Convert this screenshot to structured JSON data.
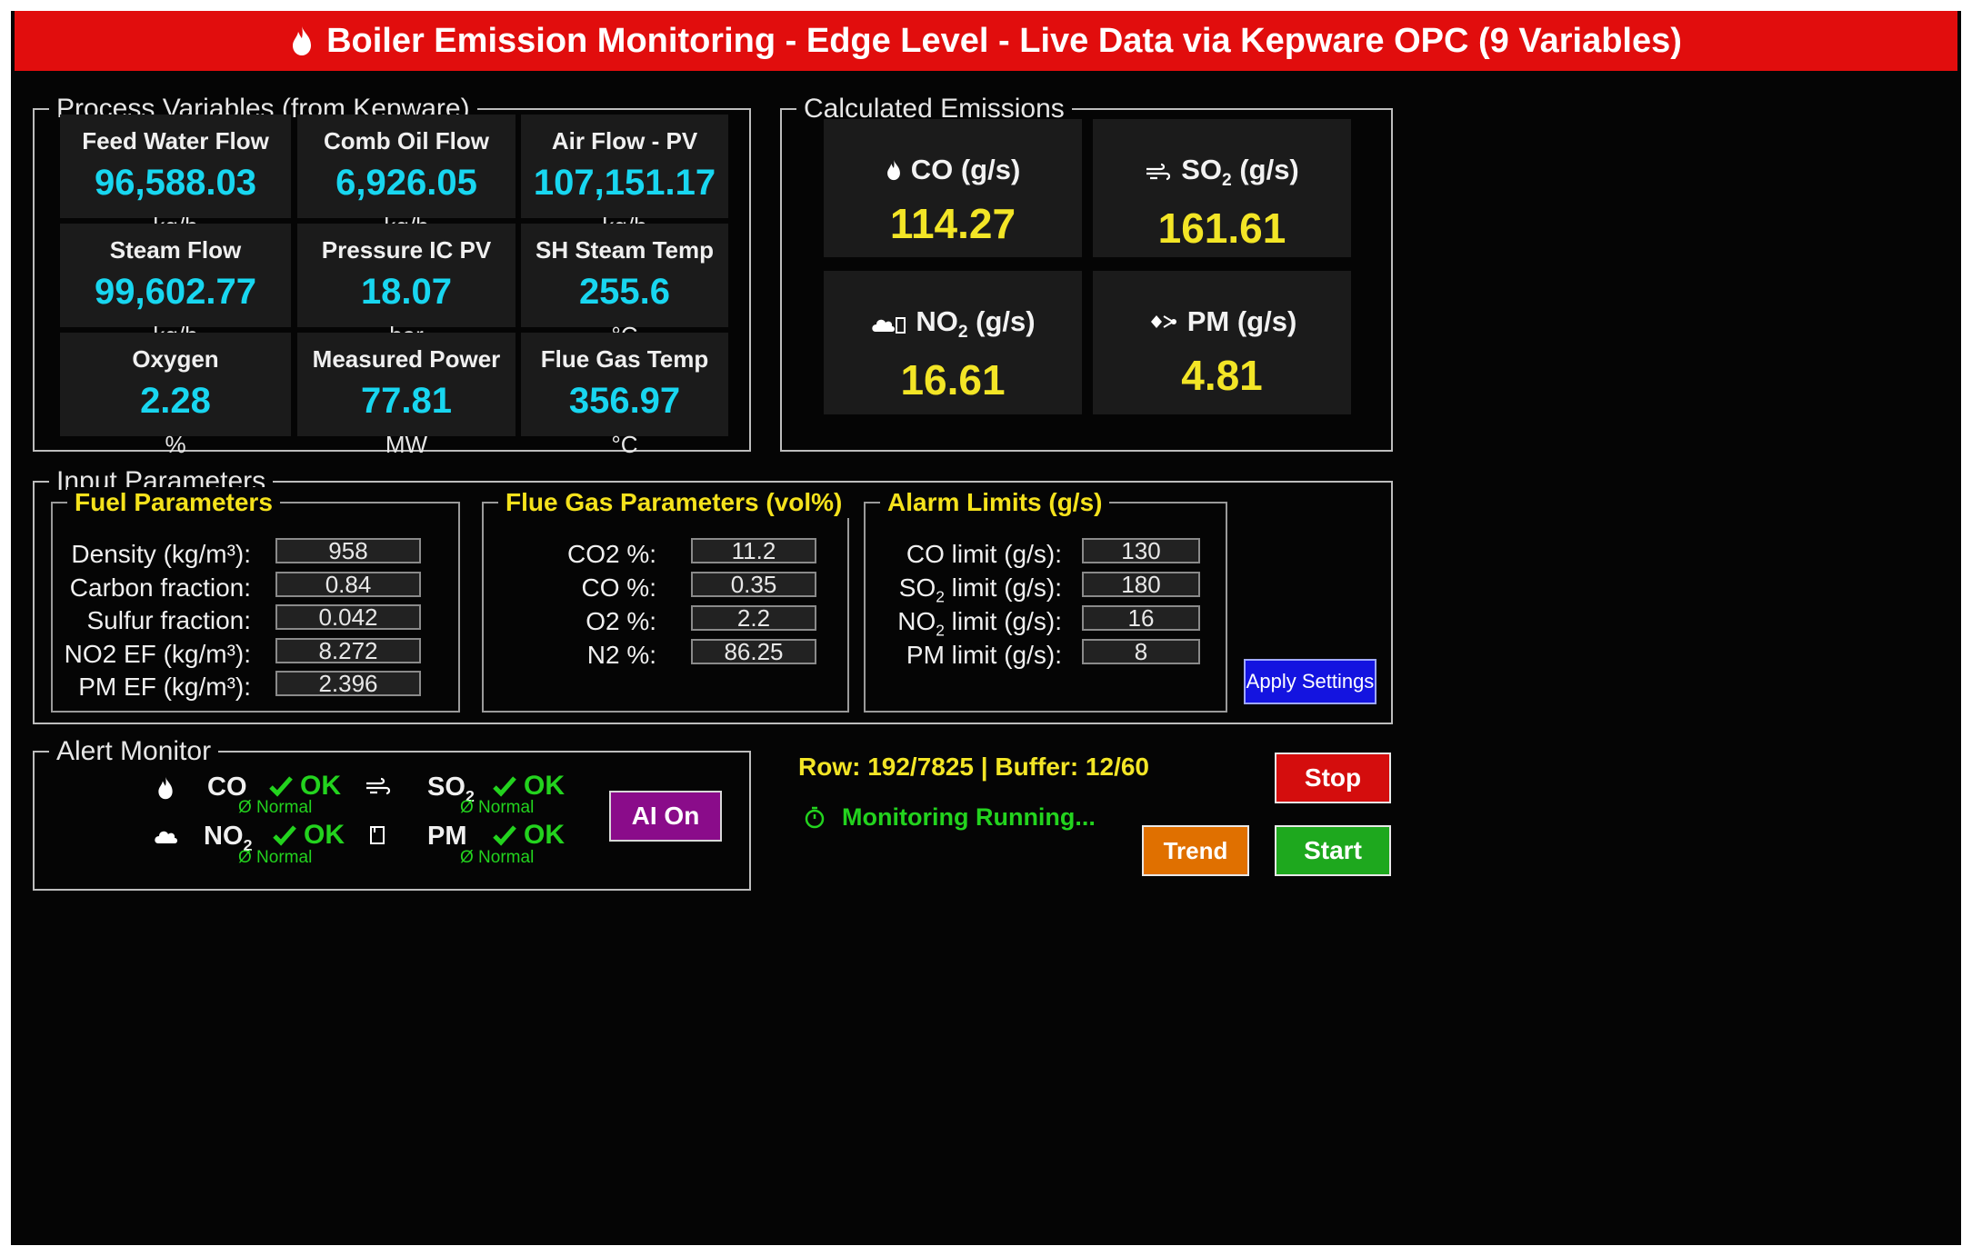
{
  "title": "Boiler Emission Monitoring - Edge Level - Live Data via Kepware OPC (9 Variables)",
  "process": {
    "legend": "Process Variables (from Kepware)",
    "cells": [
      {
        "label": "Feed Water Flow",
        "value": "96,588.03",
        "unit": "kg/h"
      },
      {
        "label": "Comb Oil Flow",
        "value": "6,926.05",
        "unit": "kg/h"
      },
      {
        "label": "Air Flow - PV",
        "value": "107,151.17",
        "unit": "kg/h"
      },
      {
        "label": "Steam Flow",
        "value": "99,602.77",
        "unit": "kg/h"
      },
      {
        "label": "Pressure IC PV",
        "value": "18.07",
        "unit": "bar"
      },
      {
        "label": "SH Steam Temp",
        "value": "255.6",
        "unit": "°C"
      },
      {
        "label": "Oxygen",
        "value": "2.28",
        "unit": "%"
      },
      {
        "label": "Measured Power",
        "value": "77.81",
        "unit": "MW"
      },
      {
        "label": "Flue Gas Temp",
        "value": "356.97",
        "unit": "°C"
      }
    ]
  },
  "emissions": {
    "legend": "Calculated Emissions",
    "co": {
      "label": "CO (g/s)",
      "value": "114.27",
      "icon": "flame-icon"
    },
    "so2": {
      "label_pre": "SO",
      "label_sub": "2",
      "label_post": " (g/s)",
      "value": "161.61",
      "icon": "wind-icon"
    },
    "no2": {
      "label_pre": "NO",
      "label_sub": "2",
      "label_post": " (g/s)",
      "value": "16.61",
      "icon": "cloud-icon"
    },
    "pm": {
      "label": "PM (g/s)",
      "value": "4.81",
      "icon": "particle-icon"
    }
  },
  "inputs": {
    "legend": "Input Parameters",
    "fuel": {
      "legend": "Fuel Parameters",
      "rows": [
        {
          "label": "Density (kg/m³):",
          "value": "958"
        },
        {
          "label": "Carbon fraction:",
          "value": "0.84"
        },
        {
          "label": "Sulfur fraction:",
          "value": "0.042"
        },
        {
          "label": "NO2 EF (kg/m³):",
          "value": "8.272"
        },
        {
          "label": "PM EF (kg/m³):",
          "value": "2.396"
        }
      ]
    },
    "flue": {
      "legend": "Flue Gas Parameters (vol%)",
      "rows": [
        {
          "label": "CO2 %:",
          "value": "11.2"
        },
        {
          "label": "CO %:",
          "value": "0.35"
        },
        {
          "label": "O2 %:",
          "value": "2.2"
        },
        {
          "label": "N2 %:",
          "value": "86.25"
        }
      ]
    },
    "alarm": {
      "legend": "Alarm Limits (g/s)",
      "rows": [
        {
          "label_pre": "CO limit (g/s):",
          "label_sub": "",
          "label_post": "",
          "value": "130"
        },
        {
          "label_pre": "SO",
          "label_sub": "2",
          "label_post": " limit (g/s):",
          "value": "180"
        },
        {
          "label_pre": "NO",
          "label_sub": "2",
          "label_post": " limit (g/s):",
          "value": "16"
        },
        {
          "label_pre": "PM limit (g/s):",
          "label_sub": "",
          "label_post": "",
          "value": "8"
        }
      ]
    },
    "apply_label": "Apply Settings"
  },
  "alerts": {
    "legend": "Alert Monitor",
    "items": [
      {
        "name_pre": "CO",
        "name_sub": "",
        "status": "OK",
        "sub": "Ø Normal",
        "icon": "flame-icon"
      },
      {
        "name_pre": "SO",
        "name_sub": "2",
        "status": "OK",
        "sub": "Ø Normal",
        "icon": "wind-icon"
      },
      {
        "name_pre": "NO",
        "name_sub": "2",
        "status": "OK",
        "sub": "Ø Normal",
        "icon": "cloud-icon"
      },
      {
        "name_pre": "PM",
        "name_sub": "",
        "status": "OK",
        "sub": "Ø Normal",
        "icon": "particle-icon"
      }
    ],
    "ai_label": "AI On"
  },
  "status": {
    "row_text": "Row: 192/7825 | Buffer: 12/60",
    "running_text": "Monitoring Running..."
  },
  "buttons": {
    "stop": "Stop",
    "trend": "Trend",
    "start": "Start"
  },
  "colors": {
    "title_red": "#e10d0d",
    "value_cyan": "#18d6f0",
    "value_yellow": "#f3e526",
    "ok_green": "#23d31e",
    "apply_blue": "#1414e0",
    "ai_purple": "#8a0c8a",
    "stop_red": "#d40d0d",
    "trend_orange": "#e07000",
    "start_green": "#1ea81e"
  }
}
